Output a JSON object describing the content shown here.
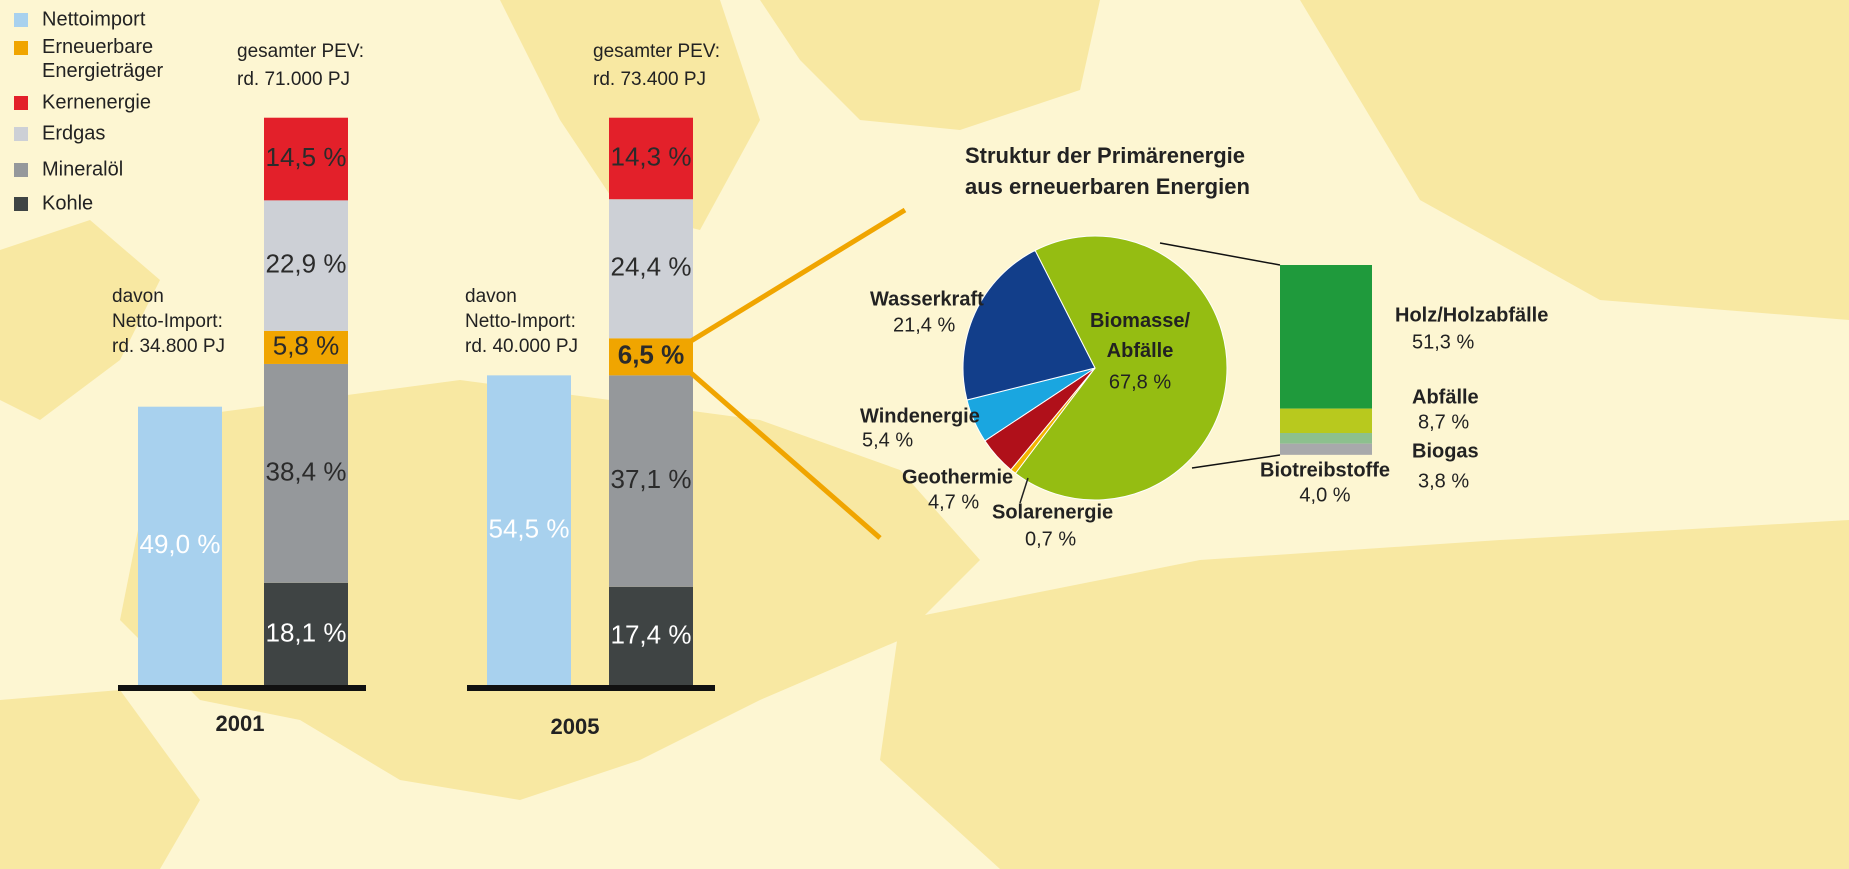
{
  "chart_data": [
    {
      "type": "bar",
      "categories": [
        "2001",
        "2005"
      ],
      "series": [
        {
          "name": "Nettoimport",
          "color": "#a8d1ee",
          "values": [
            49.0,
            54.5
          ],
          "value_labels": [
            "49,0 %",
            "54,5 %"
          ]
        },
        {
          "name": "Erneuerbare Energieträger",
          "color": "#f0a500",
          "values": [
            5.8,
            6.5
          ],
          "value_labels": [
            "5,8 %",
            "6,5 %"
          ]
        },
        {
          "name": "Kernenergie",
          "color": "#e3202a",
          "values": [
            14.5,
            14.3
          ],
          "value_labels": [
            "14,5 %",
            "14,3 %"
          ]
        },
        {
          "name": "Erdgas",
          "color": "#cdd0d6",
          "values": [
            22.9,
            24.4
          ],
          "value_labels": [
            "22,9 %",
            "24,4 %"
          ]
        },
        {
          "name": "Mineralöl",
          "color": "#95989b",
          "values": [
            38.4,
            37.1
          ],
          "value_labels": [
            "38,4 %",
            "37,1 %"
          ]
        },
        {
          "name": "Kohle",
          "color": "#3f4444",
          "values": [
            18.1,
            17.4
          ],
          "value_labels": [
            "18,1 %",
            "17,4 %"
          ]
        }
      ],
      "annotations": [
        {
          "total": [
            "gesamter PEV:",
            "rd. 71.000 PJ"
          ],
          "import": [
            "davon",
            "Netto-Import:",
            "rd. 34.800 PJ"
          ]
        },
        {
          "total": [
            "gesamter PEV:",
            "rd. 73.400 PJ"
          ],
          "import": [
            "davon",
            "Netto-Import:",
            "rd. 40.000 PJ"
          ]
        }
      ]
    },
    {
      "type": "pie",
      "title": "Struktur der Primärenergie aus erneuerbaren Energien",
      "categories": [
        "Biomasse/Abfälle",
        "Solarenergie",
        "Geothermie",
        "Windenergie",
        "Wasserkraft"
      ],
      "values": [
        67.8,
        0.7,
        4.7,
        5.4,
        21.4
      ],
      "value_labels": [
        "67,8 %",
        "0,7 %",
        "4,7 %",
        "5,4 %",
        "21,4 %"
      ],
      "colors": [
        "#95bd12",
        "#f3b400",
        "#b0101a",
        "#1aa6e0",
        "#123e8a"
      ]
    },
    {
      "type": "bar",
      "categories": [
        "Holz/Holzabfälle",
        "Abfälle",
        "Biogas",
        "Biotreibstoffe"
      ],
      "values": [
        51.3,
        8.7,
        3.8,
        4.0
      ],
      "value_labels": [
        "51,3 %",
        "8,7 %",
        "3,8 %",
        "4,0 %"
      ],
      "colors": [
        "#1f9a3c",
        "#b8c91e",
        "#8dc08e",
        "#a8a9ab"
      ]
    }
  ]
}
